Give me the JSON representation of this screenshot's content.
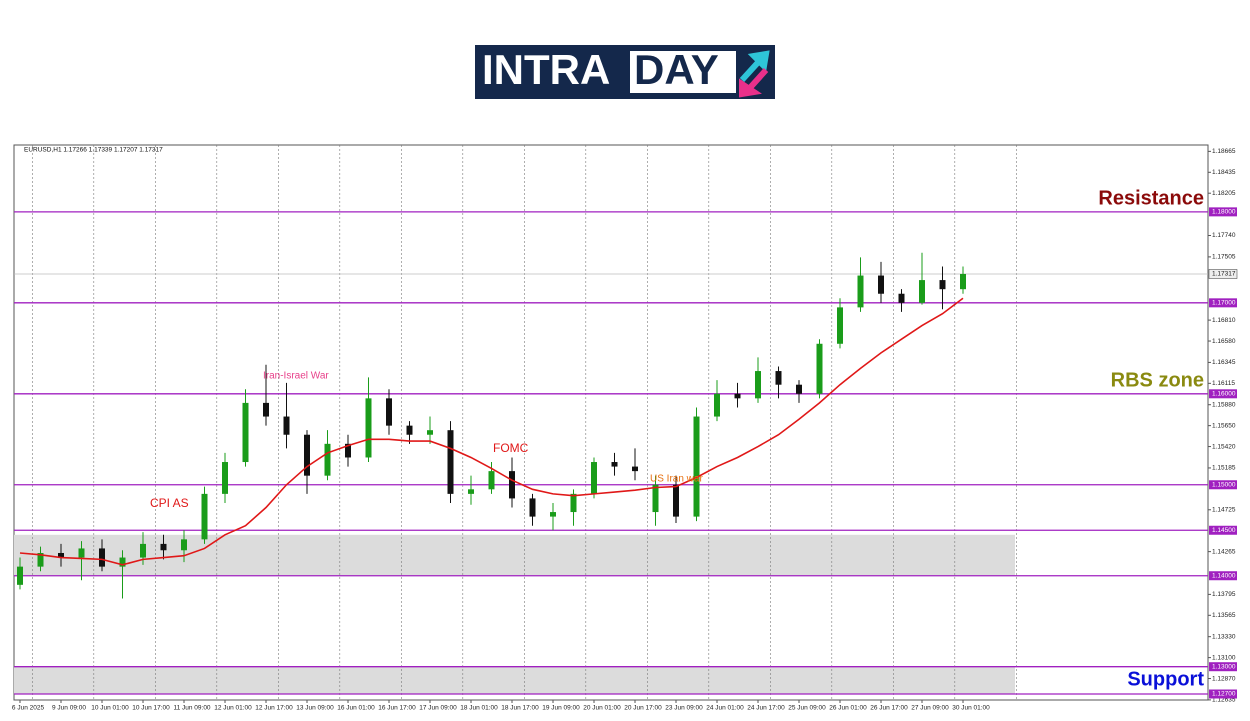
{
  "logo": {
    "left": "INTRA",
    "right": "DAY"
  },
  "chart_data": {
    "type": "candlestick",
    "symbol_info": "EURUSD,H1  1.17266 1.17339 1.17207 1.17317",
    "up_color": "#1a9c1a",
    "down_color": "#111111",
    "open": [
      1.139,
      1.141,
      1.1425,
      1.142,
      1.143,
      1.141,
      1.142,
      1.1435,
      1.1428,
      1.144,
      1.149,
      1.1525,
      1.159,
      1.1575,
      1.1555,
      1.151,
      1.1545,
      1.153,
      1.1595,
      1.1565,
      1.1555,
      1.156,
      1.149,
      1.1495,
      1.1515,
      1.1485,
      1.1465,
      1.147,
      1.149,
      1.1525,
      1.152,
      1.147,
      1.15,
      1.1465,
      1.1575,
      1.16,
      1.1595,
      1.1625,
      1.161,
      1.16,
      1.1655,
      1.1695,
      1.173,
      1.171,
      1.17,
      1.1725,
      1.1715
    ],
    "high": [
      1.142,
      1.1432,
      1.1435,
      1.1438,
      1.144,
      1.1428,
      1.1448,
      1.1445,
      1.145,
      1.1498,
      1.1535,
      1.1605,
      1.1632,
      1.1612,
      1.156,
      1.156,
      1.1555,
      1.1618,
      1.1605,
      1.157,
      1.1575,
      1.157,
      1.151,
      1.1525,
      1.153,
      1.149,
      1.148,
      1.1495,
      1.153,
      1.1535,
      1.154,
      1.151,
      1.151,
      1.1585,
      1.1615,
      1.1612,
      1.164,
      1.163,
      1.1615,
      1.166,
      1.1705,
      1.175,
      1.1745,
      1.1715,
      1.1755,
      1.174,
      1.174
    ],
    "low": [
      1.1385,
      1.1405,
      1.141,
      1.1395,
      1.1405,
      1.1375,
      1.1412,
      1.1418,
      1.1415,
      1.1435,
      1.148,
      1.152,
      1.1565,
      1.154,
      1.149,
      1.1505,
      1.152,
      1.1525,
      1.1555,
      1.1545,
      1.1545,
      1.148,
      1.1478,
      1.149,
      1.1475,
      1.1455,
      1.145,
      1.1455,
      1.1485,
      1.151,
      1.1505,
      1.1455,
      1.1458,
      1.146,
      1.157,
      1.1585,
      1.159,
      1.1595,
      1.159,
      1.1595,
      1.165,
      1.169,
      1.17,
      1.169,
      1.1698,
      1.1693,
      1.171
    ],
    "close": [
      1.141,
      1.1425,
      1.142,
      1.143,
      1.141,
      1.142,
      1.1435,
      1.1428,
      1.144,
      1.149,
      1.1525,
      1.159,
      1.1575,
      1.1555,
      1.151,
      1.1545,
      1.153,
      1.1595,
      1.1565,
      1.1555,
      1.156,
      1.149,
      1.1495,
      1.1515,
      1.1485,
      1.1465,
      1.147,
      1.149,
      1.1525,
      1.152,
      1.1515,
      1.15,
      1.1465,
      1.1575,
      1.16,
      1.1595,
      1.1625,
      1.161,
      1.16,
      1.1655,
      1.1695,
      1.173,
      1.171,
      1.17,
      1.1725,
      1.1715,
      1.17317
    ],
    "ma": {
      "color": "#e01818",
      "values": [
        1.1425,
        1.1423,
        1.142,
        1.1419,
        1.1418,
        1.1412,
        1.1418,
        1.142,
        1.1422,
        1.143,
        1.1445,
        1.1455,
        1.1475,
        1.15,
        1.152,
        1.1535,
        1.1543,
        1.155,
        1.155,
        1.1548,
        1.1548,
        1.154,
        1.153,
        1.1518,
        1.1505,
        1.1495,
        1.149,
        1.1488,
        1.149,
        1.1492,
        1.1494,
        1.1497,
        1.1498,
        1.1508,
        1.152,
        1.153,
        1.1542,
        1.1555,
        1.1572,
        1.159,
        1.161,
        1.1628,
        1.1645,
        1.166,
        1.1675,
        1.1688,
        1.1705
      ]
    },
    "x_labels": [
      "6 Jun 2025",
      "9 Jun 09:00",
      "10 Jun 01:00",
      "10 Jun 17:00",
      "11 Jun 09:00",
      "12 Jun 01:00",
      "12 Jun 17:00",
      "13 Jun 09:00",
      "16 Jun 01:00",
      "16 Jun 17:00",
      "17 Jun 09:00",
      "18 Jun 01:00",
      "18 Jun 17:00",
      "19 Jun 09:00",
      "20 Jun 01:00",
      "20 Jun 17:00",
      "23 Jun 09:00",
      "24 Jun 01:00",
      "24 Jun 17:00",
      "25 Jun 09:00",
      "26 Jun 01:00",
      "26 Jun 17:00",
      "27 Jun 09:00",
      "30 Jun 01:00"
    ],
    "ylim": [
      1.12634,
      1.18735
    ],
    "yticks": [
      1.18665,
      1.18435,
      1.18205,
      {
        "value": 1.1774,
        "label": "1.17740"
      },
      1.17505,
      {
        "value": 1.1681,
        "label": "1.16810"
      },
      {
        "value": 1.1658,
        "label": "1.16580"
      },
      1.16345,
      1.16115,
      {
        "value": 1.1588,
        "label": "1.15880"
      },
      {
        "value": 1.1565,
        "label": "1.15650"
      },
      {
        "value": 1.1542,
        "label": "1.15420"
      },
      1.15185,
      1.14725,
      1.14265,
      1.13795,
      1.13565,
      {
        "value": 1.1333,
        "label": "1.13330"
      },
      {
        "value": 1.131,
        "label": "1.13100"
      },
      {
        "value": 1.1287,
        "label": "1.12870"
      },
      1.12635
    ],
    "current_price": 1.17317,
    "level_color": "#a020c0",
    "levels": [
      {
        "value": 1.18,
        "label": "1.18000"
      },
      {
        "value": 1.17,
        "label": "1.17000"
      },
      {
        "value": 1.16,
        "label": "1.16000"
      },
      {
        "value": 1.15,
        "label": "1.15000"
      },
      {
        "value": 1.145,
        "label": "1.14500"
      },
      {
        "value": 1.14,
        "label": "1.14000"
      },
      {
        "value": 1.13,
        "label": "1.13000"
      },
      {
        "value": 1.127,
        "label": "1.12700"
      }
    ],
    "zones": [
      [
        1.14,
        1.1445
      ],
      [
        1.127,
        1.13
      ]
    ],
    "annotations": [
      {
        "text": "CPI AS",
        "color": "#e01818"
      },
      {
        "text": "Iran-Israel War",
        "color": "#e8408a"
      },
      {
        "text": "FOMC",
        "color": "#e01818"
      },
      {
        "text": "US Iran war",
        "color": "#e87010"
      }
    ],
    "zone_labels": [
      {
        "text": "Resistance",
        "color": "#8b0a0a"
      },
      {
        "text": "RBS zone",
        "color": "#8a8a10"
      },
      {
        "text": "Support",
        "color": "#0a10d8"
      }
    ]
  }
}
